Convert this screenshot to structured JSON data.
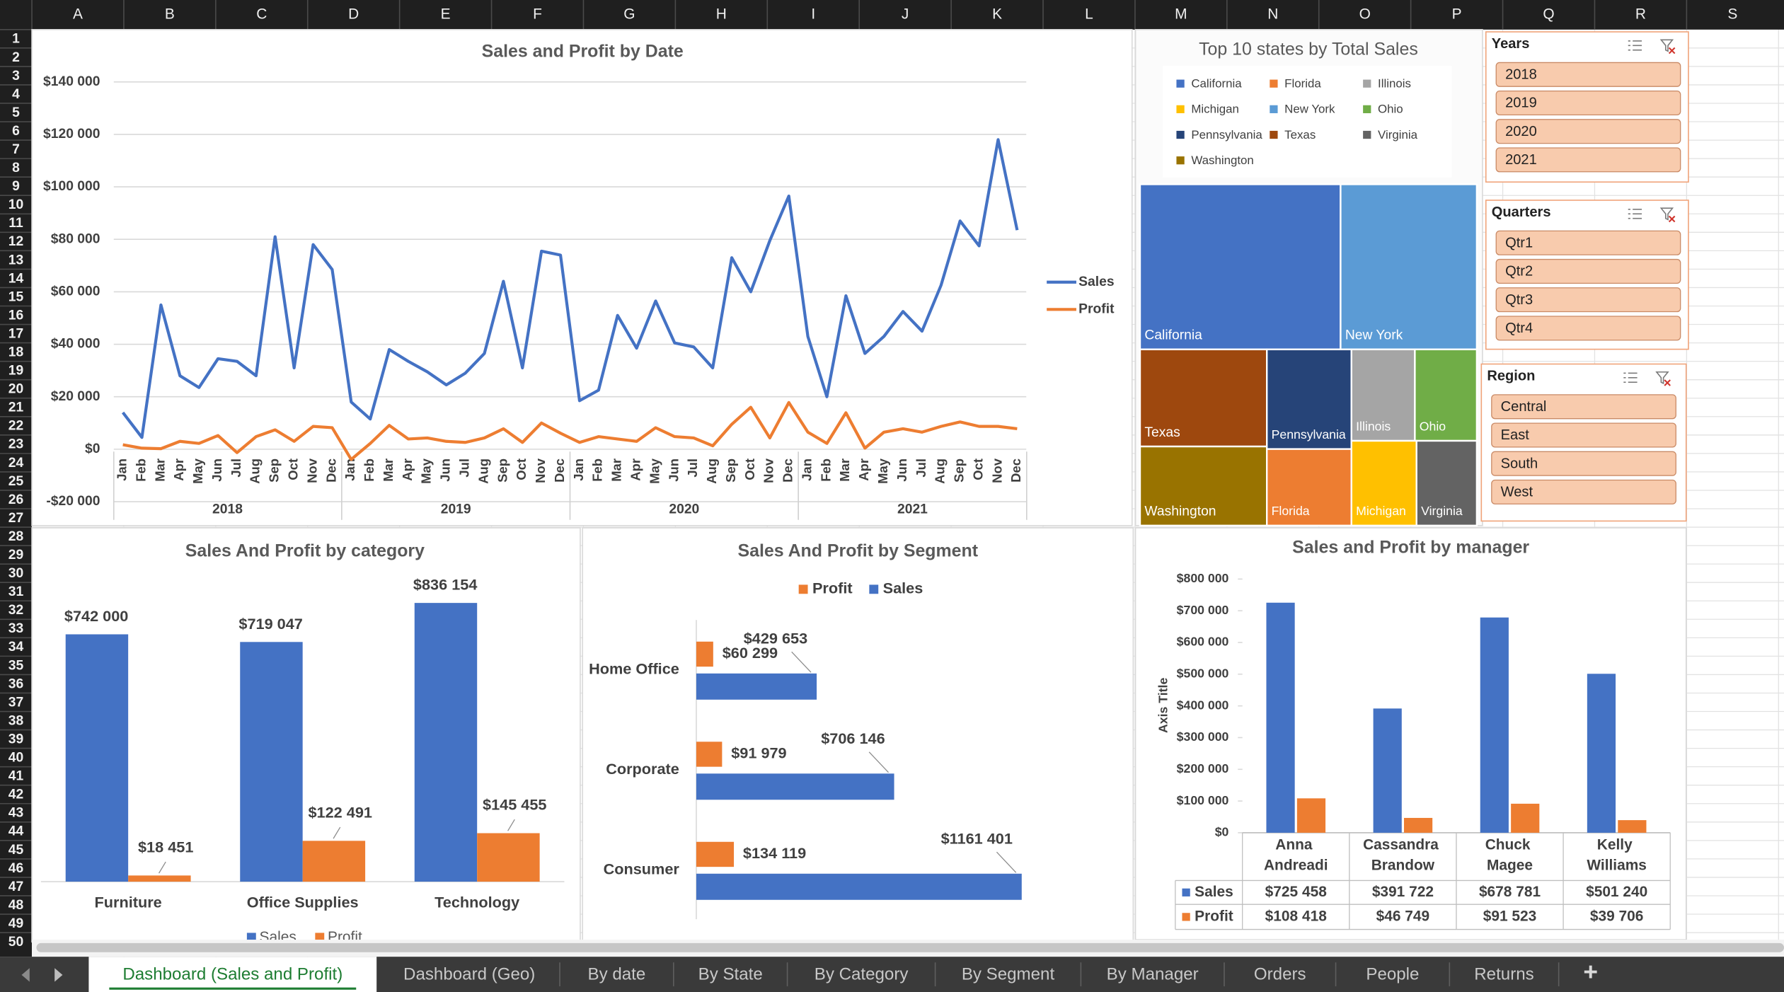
{
  "columns": [
    "A",
    "B",
    "C",
    "D",
    "E",
    "F",
    "G",
    "H",
    "I",
    "J",
    "K",
    "L",
    "M",
    "N",
    "O",
    "P",
    "Q",
    "R",
    "S"
  ],
  "row_numbers": [
    1,
    2,
    3,
    4,
    5,
    6,
    7,
    8,
    9,
    10,
    11,
    12,
    13,
    14,
    15,
    16,
    17,
    18,
    19,
    20,
    21,
    22,
    23,
    24,
    25,
    26,
    27,
    28,
    29,
    30,
    31,
    32,
    33,
    34,
    35,
    36,
    37,
    38,
    39,
    40,
    41,
    42,
    43,
    44,
    45,
    46,
    47,
    48,
    49,
    50
  ],
  "chart_data": [
    {
      "type": "line",
      "title": "Sales and Profit by Date",
      "categories": [
        "Jan",
        "Feb",
        "Mar",
        "Apr",
        "May",
        "Jun",
        "Jul",
        "Aug",
        "Sep",
        "Oct",
        "Nov",
        "Dec",
        "Jan",
        "Feb",
        "Mar",
        "Apr",
        "May",
        "Jun",
        "Jul",
        "Aug",
        "Sep",
        "Oct",
        "Nov",
        "Dec",
        "Jan",
        "Feb",
        "Mar",
        "Apr",
        "May",
        "Jun",
        "Jul",
        "Aug",
        "Sep",
        "Oct",
        "Nov",
        "Dec",
        "Jan",
        "Feb",
        "Mar",
        "Apr",
        "May",
        "Jun",
        "Jul",
        "Aug",
        "Sep",
        "Oct",
        "Nov",
        "Dec"
      ],
      "x_groups": [
        "2018",
        "2019",
        "2020",
        "2021"
      ],
      "series": [
        {
          "name": "Sales",
          "color": "#4472c4",
          "values": [
            14000,
            4500,
            55000,
            28000,
            23500,
            34500,
            33500,
            28000,
            81000,
            31000,
            78000,
            68500,
            18000,
            11500,
            38000,
            33500,
            29500,
            24500,
            29000,
            36500,
            64000,
            31000,
            75500,
            74000,
            18500,
            22500,
            51000,
            38500,
            56500,
            40500,
            39000,
            31000,
            73000,
            60000,
            79500,
            96500,
            43000,
            20000,
            58500,
            36500,
            43000,
            52500,
            45000,
            62500,
            87000,
            77500,
            118000,
            83500
          ]
        },
        {
          "name": "Profit",
          "color": "#ed7d31",
          "values": [
            1700,
            400,
            200,
            3000,
            2200,
            5200,
            -1300,
            4800,
            7400,
            3000,
            8700,
            8200,
            -3900,
            2200,
            9100,
            3900,
            4300,
            3000,
            2600,
            4300,
            7800,
            2600,
            10000,
            6100,
            2600,
            4800,
            3900,
            3000,
            8200,
            4800,
            4300,
            1300,
            9500,
            16000,
            4300,
            17800,
            6500,
            2200,
            13900,
            400,
            6500,
            7800,
            6500,
            8700,
            10400,
            8700,
            8700,
            7800
          ]
        }
      ],
      "ylim": [
        -20000,
        140000
      ],
      "yticks": [
        {
          "value": -20000,
          "label": "-$20 000"
        },
        {
          "value": 0,
          "label": "$0"
        },
        {
          "value": 20000,
          "label": "$20 000"
        },
        {
          "value": 40000,
          "label": "$40 000"
        },
        {
          "value": 60000,
          "label": "$60 000"
        },
        {
          "value": 80000,
          "label": "$80 000"
        },
        {
          "value": 100000,
          "label": "$100 000"
        },
        {
          "value": 120000,
          "label": "$120 000"
        },
        {
          "value": 140000,
          "label": "$140 000"
        }
      ],
      "grid": true,
      "legend": "right"
    },
    {
      "type": "treemap",
      "title": "Top 10 states by Total Sales",
      "categories": [
        "California",
        "Florida",
        "Illinois",
        "Michigan",
        "New York",
        "Ohio",
        "Pennsylvania",
        "Texas",
        "Virginia",
        "Washington"
      ],
      "values": [
        457688,
        89474,
        80166,
        76270,
        310876,
        78258,
        116512,
        170188,
        70637,
        138641
      ],
      "colors": [
        "#4472c4",
        "#ed7d31",
        "#a5a5a5",
        "#ffc000",
        "#5b9bd5",
        "#70ad47",
        "#264478",
        "#9e480e",
        "#636363",
        "#997300"
      ],
      "legend": "top"
    },
    {
      "type": "bar",
      "title": "Sales And Profit by category",
      "categories": [
        "Furniture",
        "Office Supplies",
        "Technology"
      ],
      "series": [
        {
          "name": "Sales",
          "color": "#4472c4",
          "values": [
            742000,
            719047,
            836154
          ],
          "value_labels": [
            "$742 000",
            "$719 047",
            "$836 154"
          ]
        },
        {
          "name": "Profit",
          "color": "#ed7d31",
          "values": [
            18451,
            122491,
            145455
          ],
          "value_labels": [
            "$18 451",
            "$122 491",
            "$145 455"
          ]
        }
      ],
      "legend": "bottom"
    },
    {
      "type": "hbar",
      "title": "Sales And Profit by Segment",
      "categories": [
        "Home Office",
        "Corporate",
        "Consumer"
      ],
      "series": [
        {
          "name": "Profit",
          "color": "#ed7d31",
          "values": [
            60299,
            91979,
            134119
          ],
          "value_labels": [
            "$60 299",
            "$91 979",
            "$134 119"
          ]
        },
        {
          "name": "Sales",
          "color": "#4472c4",
          "values": [
            429653,
            706146,
            1161401
          ],
          "value_labels": [
            "$429 653",
            "$706 146",
            "$1161 401"
          ]
        }
      ],
      "legend": "top"
    },
    {
      "type": "bar",
      "title": "Sales and Profit by manager",
      "categories": [
        "Anna Andreadi",
        "Cassandra Brandow",
        "Chuck Magee",
        "Kelly Williams"
      ],
      "series": [
        {
          "name": "Sales",
          "color": "#4472c4",
          "values": [
            725458,
            391722,
            678781,
            501240
          ],
          "value_labels": [
            "$725 458",
            "$391 722",
            "$678 781",
            "$501 240"
          ]
        },
        {
          "name": "Profit",
          "color": "#ed7d31",
          "values": [
            108418,
            46749,
            91523,
            39706
          ],
          "value_labels": [
            "$108 418",
            "$46 749",
            "$91 523",
            "$39 706"
          ]
        }
      ],
      "ylim": [
        0,
        800000
      ],
      "yticks": [
        {
          "value": 0,
          "label": "$0"
        },
        {
          "value": 100000,
          "label": "$100 000"
        },
        {
          "value": 200000,
          "label": "$200 000"
        },
        {
          "value": 300000,
          "label": "$300 000"
        },
        {
          "value": 400000,
          "label": "$400 000"
        },
        {
          "value": 500000,
          "label": "$500 000"
        },
        {
          "value": 600000,
          "label": "$600 000"
        },
        {
          "value": 700000,
          "label": "$700 000"
        },
        {
          "value": 800000,
          "label": "$800 000"
        }
      ],
      "y_label": "Axis Title",
      "legend": "data-table"
    }
  ],
  "slicers": [
    {
      "title": "Years",
      "items": [
        "2018",
        "2019",
        "2020",
        "2021"
      ]
    },
    {
      "title": "Quarters",
      "items": [
        "Qtr1",
        "Qtr2",
        "Qtr3",
        "Qtr4"
      ]
    },
    {
      "title": "Region",
      "items": [
        "Central",
        "East",
        "South",
        "West"
      ]
    }
  ],
  "sheet_tabs": [
    "Dashboard (Sales and Profit)",
    "Dashboard (Geo)",
    "By date",
    "By State",
    "By Category",
    "By Segment",
    "By Manager",
    "Orders",
    "People",
    "Returns"
  ],
  "active_tab": 0,
  "new_sheet_button": "+"
}
